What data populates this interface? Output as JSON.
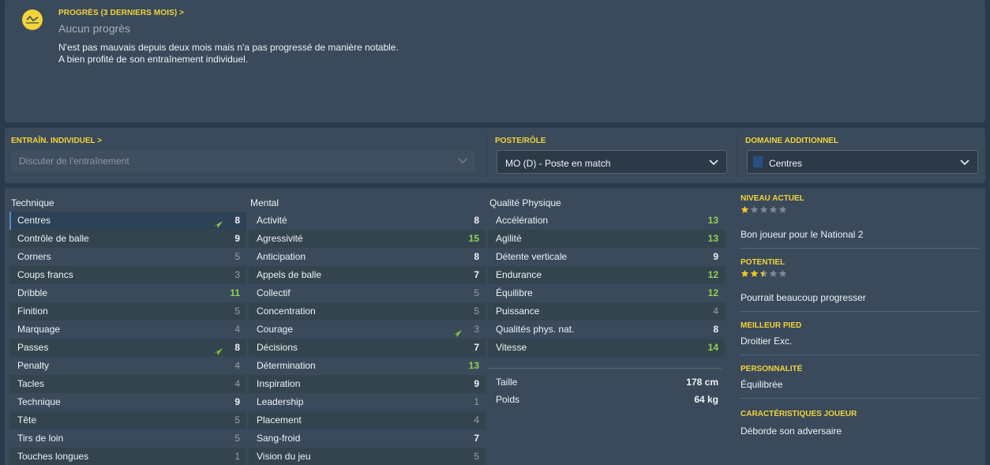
{
  "progress": {
    "label": "PROGRÈS (3 DERNIERS MOIS) >",
    "title": "Aucun progrès",
    "line1": "N'est pas mauvais depuis deux mois mais n'a pas progressé de manière notable.",
    "line2": "A bien profité de son entraînement individuel.",
    "icon": "chart-trend-icon",
    "accent_color": "#f2d33a"
  },
  "training": {
    "label": "ENTRAÎN. INDIVIDUEL >",
    "placeholder": "Discuter de l'entraînement"
  },
  "role": {
    "label": "POSTE/RÔLE",
    "value": "MO (D) - Poste en match"
  },
  "additional": {
    "label": "DOMAINE ADDITIONNEL",
    "value": "Centres"
  },
  "technique": {
    "header": "Technique",
    "rows": [
      {
        "name": "Centres",
        "value": "8",
        "arrow": true
      },
      {
        "name": "Contrôle de balle",
        "value": "9"
      },
      {
        "name": "Corners",
        "value": "5"
      },
      {
        "name": "Coups francs",
        "value": "3"
      },
      {
        "name": "Dribble",
        "value": "11"
      },
      {
        "name": "Finition",
        "value": "5"
      },
      {
        "name": "Marquage",
        "value": "4"
      },
      {
        "name": "Passes",
        "value": "8",
        "arrow": true
      },
      {
        "name": "Penalty",
        "value": "4"
      },
      {
        "name": "Tacles",
        "value": "4"
      },
      {
        "name": "Technique",
        "value": "9"
      },
      {
        "name": "Tête",
        "value": "5"
      },
      {
        "name": "Tirs de loin",
        "value": "5"
      },
      {
        "name": "Touches longues",
        "value": "1"
      }
    ]
  },
  "mental": {
    "header": "Mental",
    "rows": [
      {
        "name": "Activité",
        "value": "8"
      },
      {
        "name": "Agressivité",
        "value": "15"
      },
      {
        "name": "Anticipation",
        "value": "8"
      },
      {
        "name": "Appels de balle",
        "value": "7"
      },
      {
        "name": "Collectif",
        "value": "5"
      },
      {
        "name": "Concentration",
        "value": "5"
      },
      {
        "name": "Courage",
        "value": "3",
        "arrow": true
      },
      {
        "name": "Décisions",
        "value": "7"
      },
      {
        "name": "Détermination",
        "value": "13"
      },
      {
        "name": "Inspiration",
        "value": "9"
      },
      {
        "name": "Leadership",
        "value": "1"
      },
      {
        "name": "Placement",
        "value": "4"
      },
      {
        "name": "Sang-froid",
        "value": "7"
      },
      {
        "name": "Vision du jeu",
        "value": "5"
      }
    ]
  },
  "physical": {
    "header": "Qualité Physique",
    "rows": [
      {
        "name": "Accélération",
        "value": "13"
      },
      {
        "name": "Agilité",
        "value": "13"
      },
      {
        "name": "Détente verticale",
        "value": "9"
      },
      {
        "name": "Endurance",
        "value": "12"
      },
      {
        "name": "Équilibre",
        "value": "12"
      },
      {
        "name": "Puissance",
        "value": "4"
      },
      {
        "name": "Qualités phys. nat.",
        "value": "8"
      },
      {
        "name": "Vitesse",
        "value": "14"
      }
    ],
    "height_label": "Taille",
    "height_value": "178 cm",
    "weight_label": "Poids",
    "weight_value": "64 kg"
  },
  "info": {
    "current_label": "NIVEAU ACTUEL",
    "current_stars": 1,
    "current_text": "Bon joueur pour le National 2",
    "potential_label": "POTENTIEL",
    "potential_stars": 2.5,
    "potential_text": "Pourrait beaucoup progresser",
    "foot_label": "MEILLEUR PIED",
    "foot_text": "Droitier Exc.",
    "personality_label": "PERSONNALITÉ",
    "personality_text": "Équilibrée",
    "traits_label": "CARACTÉRISTIQUES JOUEUR",
    "traits_text": "Déborde son adversaire"
  }
}
